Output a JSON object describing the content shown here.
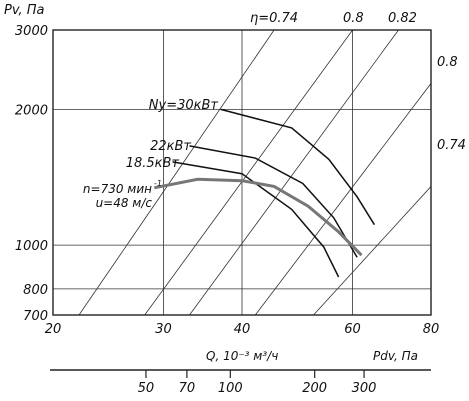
{
  "chart_data": {
    "type": "line",
    "title": "",
    "ylabel": "Pv, Па",
    "xlabel": "Q, 10⁻³ м³/ч",
    "pdv_label": "Pdv, Па",
    "y_scale": "log",
    "x_scale": "log",
    "ylim": [
      700,
      3000
    ],
    "xlim": [
      20,
      80
    ],
    "y_ticks": [
      700,
      800,
      1000,
      2000,
      3000
    ],
    "y_tick_labels": [
      "700",
      "800",
      "1000",
      "2000",
      "3000"
    ],
    "x_ticks": [
      20,
      30,
      40,
      60,
      80
    ],
    "x_tick_labels": [
      "20",
      "30",
      "40",
      "60",
      "80"
    ],
    "pdv_ticks": [
      50,
      70,
      100,
      200,
      300
    ],
    "pdv_tick_labels": [
      "50",
      "70",
      "100",
      "200",
      "300"
    ],
    "grid": true,
    "efficiency_lines": [
      {
        "label": "η=0.74",
        "points": [
          [
            22,
            700
          ],
          [
            45,
            3000
          ]
        ]
      },
      {
        "label": "0.8",
        "points": [
          [
            28,
            700
          ],
          [
            60,
            3000
          ]
        ]
      },
      {
        "label": "0.82",
        "points": [
          [
            33,
            700
          ],
          [
            71,
            3000
          ]
        ]
      },
      {
        "label": "0.8",
        "points": [
          [
            42,
            700
          ],
          [
            88,
            2720
          ]
        ]
      },
      {
        "label": "0.74",
        "points": [
          [
            52,
            700
          ],
          [
            88,
            1560
          ]
        ]
      }
    ],
    "power_curves": [
      {
        "name": "Ny=30кВт",
        "points": [
          [
            37,
            2000
          ],
          [
            48,
            1820
          ],
          [
            55,
            1550
          ],
          [
            61,
            1280
          ],
          [
            65,
            1110
          ]
        ]
      },
      {
        "name": "22кВт",
        "points": [
          [
            33,
            1660
          ],
          [
            42,
            1560
          ],
          [
            50,
            1370
          ],
          [
            56,
            1150
          ],
          [
            61,
            940
          ]
        ]
      },
      {
        "name": "18.5кВт",
        "points": [
          [
            31,
            1530
          ],
          [
            40,
            1440
          ],
          [
            48,
            1200
          ],
          [
            54,
            990
          ],
          [
            57,
            850
          ]
        ]
      }
    ],
    "operating_curve": {
      "name": "n=730 мин⁻¹, u=48 м/с",
      "label_line1": "n=730 мин",
      "label_exp": "-1",
      "label_line2": "u=48 м/с",
      "points": [
        [
          29,
          1340
        ],
        [
          34,
          1400
        ],
        [
          40,
          1390
        ],
        [
          45,
          1350
        ],
        [
          51,
          1220
        ],
        [
          57,
          1070
        ],
        [
          62,
          950
        ]
      ]
    },
    "colors": {
      "grid": "#333333",
      "curve": "#111111",
      "operating": "#777777"
    }
  }
}
